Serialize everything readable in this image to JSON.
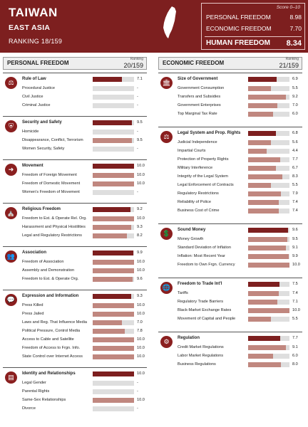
{
  "header": {
    "country": "TAIWAN",
    "region": "EAST ASIA",
    "ranking": "RANKING 18/159",
    "score_range": "Score 0–10",
    "scores": [
      {
        "label": "PERSONAL FREEDOM",
        "value": "8.98"
      },
      {
        "label": "ECONOMIC FREEDOM",
        "value": "7.70"
      },
      {
        "label": "HUMAN FREEDOM",
        "value": "8.34"
      }
    ]
  },
  "colors": {
    "primary": "#7d1f1f",
    "bar_sub": "#c0877f",
    "bar_track": "#dedede"
  },
  "personal": {
    "title": "PERSONAL FREEDOM",
    "rank_label": "Ranking",
    "rank": "20/159",
    "sections": [
      {
        "icon": "scales-icon",
        "glyph": "⚖",
        "title": "Rule of Law",
        "score": 0.71,
        "value": "7.1",
        "items": [
          {
            "label": "Procedural Justice",
            "score": null,
            "value": "-"
          },
          {
            "label": "Civil Justice",
            "score": null,
            "value": "-"
          },
          {
            "label": "Criminal Justice",
            "score": null,
            "value": "-"
          }
        ]
      },
      {
        "icon": "shield-icon",
        "glyph": "⛨",
        "title": "Security and Safety",
        "score": 0.95,
        "value": "9.5",
        "items": [
          {
            "label": "Homicide",
            "score": null,
            "value": "-"
          },
          {
            "label": "Disappearance, Conflict, Terrorism",
            "score": 0.95,
            "value": "9.5"
          },
          {
            "label": "Women Security, Safety",
            "score": null,
            "value": "-"
          }
        ]
      },
      {
        "icon": "arrow-icon",
        "glyph": "➜",
        "title": "Movement",
        "score": 1.0,
        "value": "10.0",
        "items": [
          {
            "label": "Freedom of Foreign Movement",
            "score": 1.0,
            "value": "10.0"
          },
          {
            "label": "Freedom of Domestic Movement",
            "score": 1.0,
            "value": "10.0"
          },
          {
            "label": "Women's Freedom of Movement",
            "score": null,
            "value": "-"
          }
        ]
      },
      {
        "icon": "temple-icon",
        "glyph": "⛪",
        "title": "Religious Freedom",
        "score": 0.92,
        "value": "9.2",
        "items": [
          {
            "label": "Freedom to Est. & Operate Rel. Org.",
            "score": 1.0,
            "value": "10.0"
          },
          {
            "label": "Harassment and Physical Hostilities",
            "score": 0.93,
            "value": "9.3"
          },
          {
            "label": "Legal and Regulatory Restrictions",
            "score": 0.82,
            "value": "8.2"
          }
        ]
      },
      {
        "icon": "people-icon",
        "glyph": "👥",
        "title": "Association",
        "score": 0.99,
        "value": "9.9",
        "items": [
          {
            "label": "Freedom of Association",
            "score": 1.0,
            "value": "10.0"
          },
          {
            "label": "Assembly and Demonstration",
            "score": 1.0,
            "value": "10.0"
          },
          {
            "label": "Freedom to Est. & Operate Org.",
            "score": 0.96,
            "value": "9.6"
          }
        ]
      },
      {
        "icon": "speech-icon",
        "glyph": "💬",
        "title": "Expression and Information",
        "score": 0.93,
        "value": "9.3",
        "items": [
          {
            "label": "Press Killed",
            "score": 1.0,
            "value": "10.0"
          },
          {
            "label": "Press Jailed",
            "score": 1.0,
            "value": "10.0"
          },
          {
            "label": "Laws and Reg. That Influence Media",
            "score": 0.7,
            "value": "7.0"
          },
          {
            "label": "Political Pressure, Control Media",
            "score": 0.78,
            "value": "7.8"
          },
          {
            "label": "Access to Cable and Satellite",
            "score": 1.0,
            "value": "10.0"
          },
          {
            "label": "Freedom of Access to Frgn. Info.",
            "score": 1.0,
            "value": "10.0"
          },
          {
            "label": "State Control over Internet Access",
            "score": 1.0,
            "value": "10.0"
          }
        ]
      },
      {
        "icon": "id-card-icon",
        "glyph": "▤",
        "title": "Identity and Relationships",
        "score": 1.0,
        "value": "10.0",
        "items": [
          {
            "label": "Legal Gender",
            "score": null,
            "value": "-"
          },
          {
            "label": "Parental Rights",
            "score": null,
            "value": "-"
          },
          {
            "label": "Same-Sex Relationships",
            "score": 1.0,
            "value": "10.0"
          },
          {
            "label": "Divorce",
            "score": null,
            "value": "-"
          }
        ]
      }
    ]
  },
  "economic": {
    "title": "ECONOMIC FREEDOM",
    "rank_label": "Ranking",
    "rank": "21/159",
    "sections": [
      {
        "icon": "building-icon",
        "glyph": "🏛",
        "title": "Size of Government",
        "score": 0.69,
        "value": "6.9",
        "items": [
          {
            "label": "Government Consumption",
            "score": 0.55,
            "value": "5.5"
          },
          {
            "label": "Transfers and Subsidies",
            "score": 0.92,
            "value": "9.2"
          },
          {
            "label": "Government Enterprises",
            "score": 0.7,
            "value": "7.0"
          },
          {
            "label": "Top Marginal Tax Rate",
            "score": 0.6,
            "value": "6.0"
          }
        ]
      },
      {
        "icon": "scales-icon",
        "glyph": "⚖",
        "title": "Legal System and Prop. Rights",
        "score": 0.68,
        "value": "6.8",
        "items": [
          {
            "label": "Judicial Independence",
            "score": 0.56,
            "value": "5.6"
          },
          {
            "label": "Impartial Courts",
            "score": 0.44,
            "value": "4.4"
          },
          {
            "label": "Protection of Property Rights",
            "score": 0.77,
            "value": "7.7"
          },
          {
            "label": "Military Interference",
            "score": 0.67,
            "value": "6.7"
          },
          {
            "label": "Integrity of the Legal System",
            "score": 0.83,
            "value": "8.3"
          },
          {
            "label": "Legal Enforcement of Contracts",
            "score": 0.55,
            "value": "5.5"
          },
          {
            "label": "Regulatory Restrictions",
            "score": 0.79,
            "value": "7.9"
          },
          {
            "label": "Reliability of Police",
            "score": 0.74,
            "value": "7.4"
          },
          {
            "label": "Business Cost of Crime",
            "score": 0.74,
            "value": "7.4"
          }
        ]
      },
      {
        "icon": "money-icon",
        "glyph": "💲",
        "title": "Sound Money",
        "score": 0.96,
        "value": "9.6",
        "items": [
          {
            "label": "Money Growth",
            "score": 0.95,
            "value": "9.5"
          },
          {
            "label": "Standard Deviation of Inflation",
            "score": 0.91,
            "value": "9.1"
          },
          {
            "label": "Inflation: Most Recent Year",
            "score": 0.99,
            "value": "9.9"
          },
          {
            "label": "Freedom to Own Frgn. Currency",
            "score": 1.0,
            "value": "10.0"
          }
        ]
      },
      {
        "icon": "globe-icon",
        "glyph": "🌐",
        "title": "Freedom to Trade Int'l",
        "score": 0.75,
        "value": "7.5",
        "items": [
          {
            "label": "Tariffs",
            "score": 0.74,
            "value": "7.4"
          },
          {
            "label": "Regulatory Trade Barriers",
            "score": 0.71,
            "value": "7.1"
          },
          {
            "label": "Black-Market Exchange Rates",
            "score": 1.0,
            "value": "10.0"
          },
          {
            "label": "Movement of Capital and People",
            "score": 0.55,
            "value": "5.5"
          }
        ]
      },
      {
        "icon": "gears-icon",
        "glyph": "⚙",
        "title": "Regulation",
        "score": 0.77,
        "value": "7.7",
        "items": [
          {
            "label": "Credit Market Regulations",
            "score": 0.91,
            "value": "9.1"
          },
          {
            "label": "Labor Market Regulations",
            "score": 0.6,
            "value": "6.0"
          },
          {
            "label": "Business Regulations",
            "score": 0.8,
            "value": "8.0"
          }
        ]
      }
    ]
  }
}
